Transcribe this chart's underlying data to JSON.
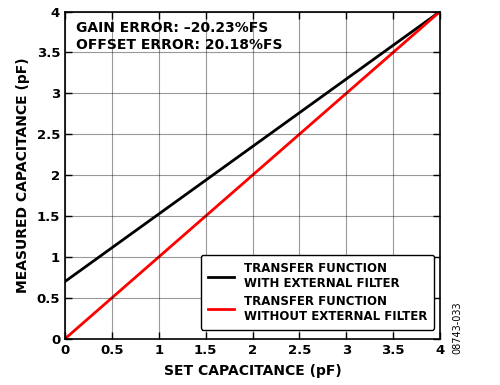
{
  "title": "",
  "xlabel": "SET CAPACITANCE (pF)",
  "ylabel": "MEASURED CAPACITANCE (pF)",
  "xlim": [
    0,
    4.0
  ],
  "ylim": [
    0,
    4.0
  ],
  "xticks": [
    0,
    0.5,
    1.0,
    1.5,
    2.0,
    2.5,
    3.0,
    3.5,
    4.0
  ],
  "yticks": [
    0,
    0.5,
    1.0,
    1.5,
    2.0,
    2.5,
    3.0,
    3.5,
    4.0
  ],
  "annotation_line1": "GAIN ERROR: –20.23%FS",
  "annotation_line2": "OFFSET ERROR: 20.18%FS",
  "line_with_filter": {
    "x": [
      0,
      4.0
    ],
    "y": [
      0.7,
      4.0
    ],
    "color": "#000000",
    "linewidth": 2.0,
    "label_line1": "TRANSFER FUNCTION",
    "label_line2": "WITH EXTERNAL FILTER"
  },
  "line_without_filter": {
    "x": [
      0,
      4.0
    ],
    "y": [
      0.0,
      4.0
    ],
    "color": "#ff0000",
    "linewidth": 2.0,
    "label_line1": "TRANSFER FUNCTION",
    "label_line2": "WITHOUT EXTERNAL FILTER"
  },
  "watermark": "08743-033",
  "grid_color": "#000000",
  "grid_alpha": 0.4,
  "background_color": "#ffffff",
  "annotation_fontsize": 10.0,
  "axis_label_fontsize": 10,
  "tick_fontsize": 9.5,
  "legend_fontsize": 8.5
}
